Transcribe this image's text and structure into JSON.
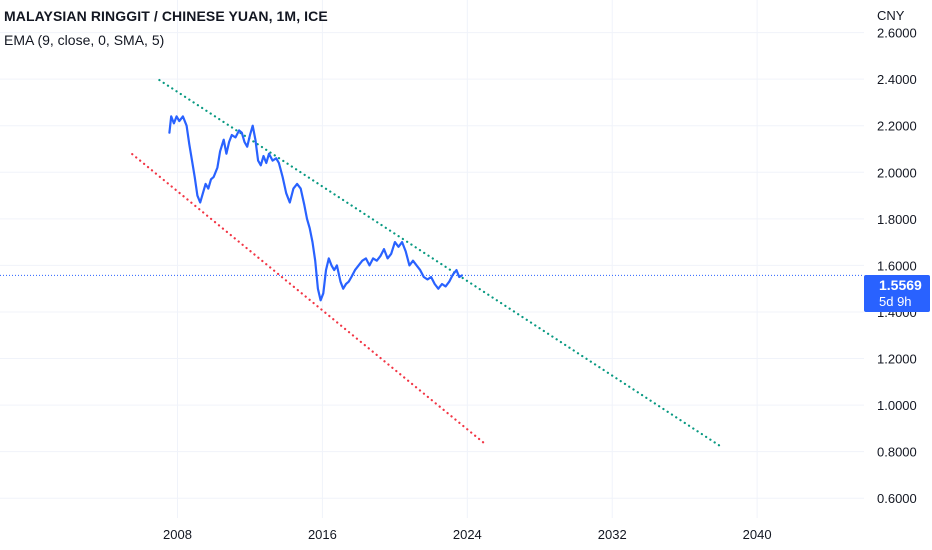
{
  "header": {
    "title": "MALAYSIAN RINGGIT / CHINESE YUAN, 1M, ICE",
    "indicator": "EMA (9, close, 0, SMA, 5)",
    "currency": "CNY"
  },
  "price_tag": {
    "value": "1.5569",
    "countdown": "5d 9h"
  },
  "colors": {
    "price_line": "#2962ff",
    "upper_trend": "#089981",
    "lower_trend": "#f23645",
    "price_tag_bg": "#2962ff",
    "grid": "#f0f3fa"
  },
  "chart_data": {
    "type": "line",
    "title": "MALAYSIAN RINGGIT / CHINESE YUAN, 1M, ICE",
    "xlabel": "",
    "ylabel": "",
    "x_ticks": [
      "2008",
      "2016",
      "2024",
      "2032",
      "2040"
    ],
    "x_tick_values": [
      2008,
      2016,
      2024,
      2032,
      2040
    ],
    "y_ticks": [
      "2.6000",
      "2.4000",
      "2.2000",
      "2.0000",
      "1.8000",
      "1.6000",
      "1.4000",
      "1.2000",
      "1.0000",
      "0.8000",
      "0.6000"
    ],
    "y_tick_values": [
      2.6,
      2.4,
      2.2,
      2.0,
      1.8,
      1.6,
      1.4,
      1.2,
      1.0,
      0.8,
      0.6
    ],
    "xlim": [
      1998.2,
      2045.9
    ],
    "ylim": [
      0.515,
      2.74
    ],
    "grid": true,
    "last_value": 1.5569,
    "series": [
      {
        "points": [
          [
            2007.55,
            2.17
          ],
          [
            2007.65,
            2.24
          ],
          [
            2007.8,
            2.21
          ],
          [
            2007.95,
            2.24
          ],
          [
            2008.1,
            2.22
          ],
          [
            2008.3,
            2.24
          ],
          [
            2008.5,
            2.2
          ],
          [
            2008.65,
            2.12
          ],
          [
            2008.8,
            2.05
          ],
          [
            2008.95,
            1.98
          ],
          [
            2009.1,
            1.9
          ],
          [
            2009.25,
            1.87
          ],
          [
            2009.4,
            1.91
          ],
          [
            2009.55,
            1.95
          ],
          [
            2009.7,
            1.93
          ],
          [
            2009.85,
            1.97
          ],
          [
            2010.0,
            1.98
          ],
          [
            2010.2,
            2.02
          ],
          [
            2010.35,
            2.09
          ],
          [
            2010.55,
            2.14
          ],
          [
            2010.7,
            2.08
          ],
          [
            2010.85,
            2.13
          ],
          [
            2011.0,
            2.16
          ],
          [
            2011.2,
            2.15
          ],
          [
            2011.4,
            2.18
          ],
          [
            2011.55,
            2.17
          ],
          [
            2011.7,
            2.13
          ],
          [
            2011.85,
            2.11
          ],
          [
            2012.0,
            2.16
          ],
          [
            2012.15,
            2.2
          ],
          [
            2012.3,
            2.14
          ],
          [
            2012.45,
            2.05
          ],
          [
            2012.6,
            2.03
          ],
          [
            2012.75,
            2.07
          ],
          [
            2012.9,
            2.04
          ],
          [
            2013.05,
            2.08
          ],
          [
            2013.25,
            2.05
          ],
          [
            2013.45,
            2.06
          ],
          [
            2013.6,
            2.04
          ],
          [
            2013.8,
            1.98
          ],
          [
            2014.0,
            1.91
          ],
          [
            2014.2,
            1.87
          ],
          [
            2014.4,
            1.93
          ],
          [
            2014.6,
            1.95
          ],
          [
            2014.8,
            1.93
          ],
          [
            2015.0,
            1.86
          ],
          [
            2015.15,
            1.8
          ],
          [
            2015.3,
            1.76
          ],
          [
            2015.45,
            1.7
          ],
          [
            2015.6,
            1.62
          ],
          [
            2015.75,
            1.5
          ],
          [
            2015.9,
            1.45
          ],
          [
            2016.05,
            1.48
          ],
          [
            2016.2,
            1.58
          ],
          [
            2016.35,
            1.63
          ],
          [
            2016.5,
            1.6
          ],
          [
            2016.65,
            1.58
          ],
          [
            2016.8,
            1.6
          ],
          [
            2017.0,
            1.53
          ],
          [
            2017.15,
            1.5
          ],
          [
            2017.3,
            1.52
          ],
          [
            2017.45,
            1.53
          ],
          [
            2017.6,
            1.55
          ],
          [
            2017.8,
            1.58
          ],
          [
            2018.0,
            1.6
          ],
          [
            2018.2,
            1.62
          ],
          [
            2018.4,
            1.63
          ],
          [
            2018.6,
            1.6
          ],
          [
            2018.8,
            1.63
          ],
          [
            2019.0,
            1.62
          ],
          [
            2019.2,
            1.64
          ],
          [
            2019.4,
            1.67
          ],
          [
            2019.6,
            1.63
          ],
          [
            2019.8,
            1.65
          ],
          [
            2020.0,
            1.7
          ],
          [
            2020.2,
            1.68
          ],
          [
            2020.4,
            1.7
          ],
          [
            2020.6,
            1.66
          ],
          [
            2020.8,
            1.6
          ],
          [
            2021.0,
            1.62
          ],
          [
            2021.2,
            1.6
          ],
          [
            2021.4,
            1.58
          ],
          [
            2021.6,
            1.55
          ],
          [
            2021.8,
            1.54
          ],
          [
            2022.0,
            1.55
          ],
          [
            2022.2,
            1.52
          ],
          [
            2022.4,
            1.5
          ],
          [
            2022.6,
            1.52
          ],
          [
            2022.8,
            1.51
          ],
          [
            2023.0,
            1.53
          ],
          [
            2023.2,
            1.56
          ],
          [
            2023.4,
            1.58
          ],
          [
            2023.55,
            1.55
          ],
          [
            2023.7,
            1.5569
          ]
        ]
      }
    ],
    "trendlines": [
      {
        "start": [
          2007.0,
          2.396
        ],
        "end": [
          2038.0,
          0.822
        ]
      },
      {
        "start": [
          2005.5,
          2.078
        ],
        "end": [
          2025.0,
          0.832
        ]
      }
    ]
  }
}
